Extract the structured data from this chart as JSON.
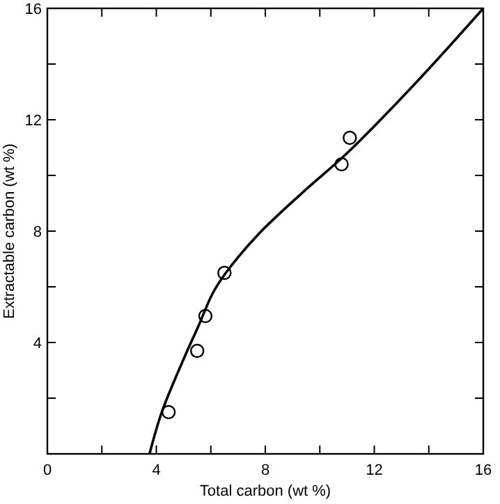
{
  "chart_data": {
    "type": "scatter",
    "xlabel": "Total carbon (wt %)",
    "ylabel": "Extractable carbon (wt %)",
    "xlim": [
      0,
      16
    ],
    "ylim": [
      0,
      16
    ],
    "xticks": [
      0,
      {
        "value": 2,
        "label": null
      },
      4,
      {
        "value": 6,
        "label": null
      },
      8,
      {
        "value": 10,
        "label": null
      },
      12,
      {
        "value": 14,
        "label": null
      },
      16
    ],
    "yticks": [
      {
        "value": 2,
        "label": null
      },
      4,
      {
        "value": 6,
        "label": null
      },
      8,
      {
        "value": 10,
        "label": null
      },
      12,
      {
        "value": 14,
        "label": null
      },
      16
    ],
    "marker": "circle",
    "grid": false,
    "series": [
      {
        "color": "#000000",
        "x": [
          4.45,
          5.5,
          5.8,
          6.5,
          10.8,
          11.1
        ],
        "values": [
          1.5,
          3.7,
          4.95,
          6.5,
          10.4,
          11.35
        ]
      },
      {
        "type": "line",
        "color": "#000000",
        "marker": "none",
        "x": [
          3.75,
          4.2,
          5.0,
          5.55,
          6.06,
          6.55,
          7.7,
          9.36,
          11.0,
          13.5,
          16
        ],
        "values": [
          0,
          1.5,
          3.4,
          4.6,
          5.75,
          6.5,
          7.84,
          9.38,
          10.8,
          13.3,
          16
        ]
      }
    ]
  }
}
